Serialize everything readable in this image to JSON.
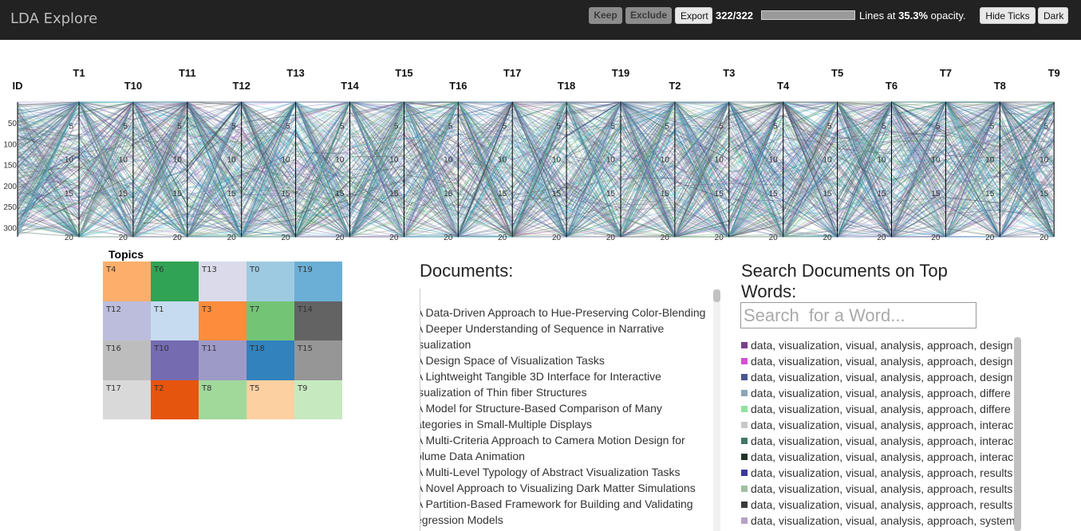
{
  "app": {
    "title": "LDA Explore"
  },
  "toolbar": {
    "keep": "Keep",
    "exclude": "Exclude",
    "export": "Export",
    "count": "322/322",
    "selected_fraction": 1.0,
    "lines_prefix": "Lines at",
    "opacity": "35.3%",
    "lines_suffix": "opacity.",
    "hide_ticks": "Hide Ticks",
    "dark": "Dark"
  },
  "axes": {
    "id_label": "ID",
    "id_ticks": [
      "50",
      "100",
      "150",
      "200",
      "250",
      "300"
    ],
    "topic_ticks": [
      "5",
      "10",
      "15",
      "20"
    ],
    "topic_labels": [
      "T1",
      "T10",
      "T11",
      "T12",
      "T13",
      "T14",
      "T15",
      "T16",
      "T17",
      "T18",
      "T19",
      "T2",
      "T3",
      "T4",
      "T5",
      "T6",
      "T7",
      "T8",
      "T9"
    ],
    "line_count": 322,
    "line_colors": [
      "#6a51a3",
      "#31a354",
      "#1f77b4",
      "#9e9ac8",
      "#756bb1",
      "#74c476",
      "#bdbdbd",
      "#636363",
      "#222222",
      "#3182bd",
      "#a1d99b",
      "#525252",
      "#6baed6",
      "#9ecae1",
      "#393b79",
      "#17becf",
      "#ce6dbd",
      "#969696"
    ]
  },
  "topics": {
    "title": "Topics",
    "cells": [
      {
        "label": "T4",
        "color": "#fdae6b"
      },
      {
        "label": "T6",
        "color": "#31a354"
      },
      {
        "label": "T13",
        "color": "#dadaeb"
      },
      {
        "label": "T0",
        "color": "#9ecae1"
      },
      {
        "label": "T19",
        "color": "#6baed6"
      },
      {
        "label": "T12",
        "color": "#bcbddc"
      },
      {
        "label": "T1",
        "color": "#c6dbef"
      },
      {
        "label": "T3",
        "color": "#fd8d3c"
      },
      {
        "label": "T7",
        "color": "#74c476"
      },
      {
        "label": "T14",
        "color": "#636363"
      },
      {
        "label": "T16",
        "color": "#bdbdbd"
      },
      {
        "label": "T10",
        "color": "#756bb1"
      },
      {
        "label": "T11",
        "color": "#9e9ac8"
      },
      {
        "label": "T18",
        "color": "#3182bd"
      },
      {
        "label": "T15",
        "color": "#969696"
      },
      {
        "label": "T17",
        "color": "#d9d9d9"
      },
      {
        "label": "T2",
        "color": "#e6550d"
      },
      {
        "label": "T8",
        "color": "#a1d99b"
      },
      {
        "label": "T5",
        "color": "#fdd0a2"
      },
      {
        "label": "T9",
        "color": "#c7e9c0"
      }
    ]
  },
  "documents": {
    "title": "Documents:",
    "lines": [
      "A Data-Driven Approach to Hue-Preserving Color-Blending",
      "A Deeper Understanding of Sequence in Narrative",
      "isualization",
      "A Design Space of Visualization Tasks",
      "A Lightweight Tangible 3D Interface for Interactive",
      "isualization of Thin fiber Structures",
      "A Model for Structure-Based Comparison of Many",
      "ategories in Small-Multiple Displays",
      "A Multi-Criteria Approach to Camera Motion Design for",
      "olume Data Animation",
      "A Multi-Level Typology of Abstract Visualization Tasks",
      "A Novel Approach to Visualizing Dark Matter Simulations",
      "A Partition-Based Framework for Building and Validating",
      "egression Models"
    ]
  },
  "search": {
    "title": "Search Documents on Top Words:",
    "placeholder": "Search  for a Word...",
    "results": [
      {
        "color": "#7b3f8c",
        "text": "data, visualization, visual, analysis, approach, design"
      },
      {
        "color": "#d44fd4",
        "text": "data, visualization, visual, analysis, approach, design"
      },
      {
        "color": "#4a5591",
        "text": "data, visualization, visual, analysis, approach, design"
      },
      {
        "color": "#8aa5b8",
        "text": "data, visualization, visual, analysis, approach, differe"
      },
      {
        "color": "#8fe39f",
        "text": "data, visualization, visual, analysis, approach, differe"
      },
      {
        "color": "#c8c8c8",
        "text": "data, visualization, visual, analysis, approach, interac"
      },
      {
        "color": "#3f7a62",
        "text": "data, visualization, visual, analysis, approach, interac"
      },
      {
        "color": "#1f3326",
        "text": "data, visualization, visual, analysis, approach, interac"
      },
      {
        "color": "#3a3aa0",
        "text": "data, visualization, visual, analysis, approach, results"
      },
      {
        "color": "#a0c0a0",
        "text": "data, visualization, visual, analysis, approach, results"
      },
      {
        "color": "#3b3b3b",
        "text": "data, visualization, visual, analysis, approach, results"
      },
      {
        "color": "#b8a0c8",
        "text": "data, visualization, visual, analysis, approach, system"
      }
    ]
  }
}
